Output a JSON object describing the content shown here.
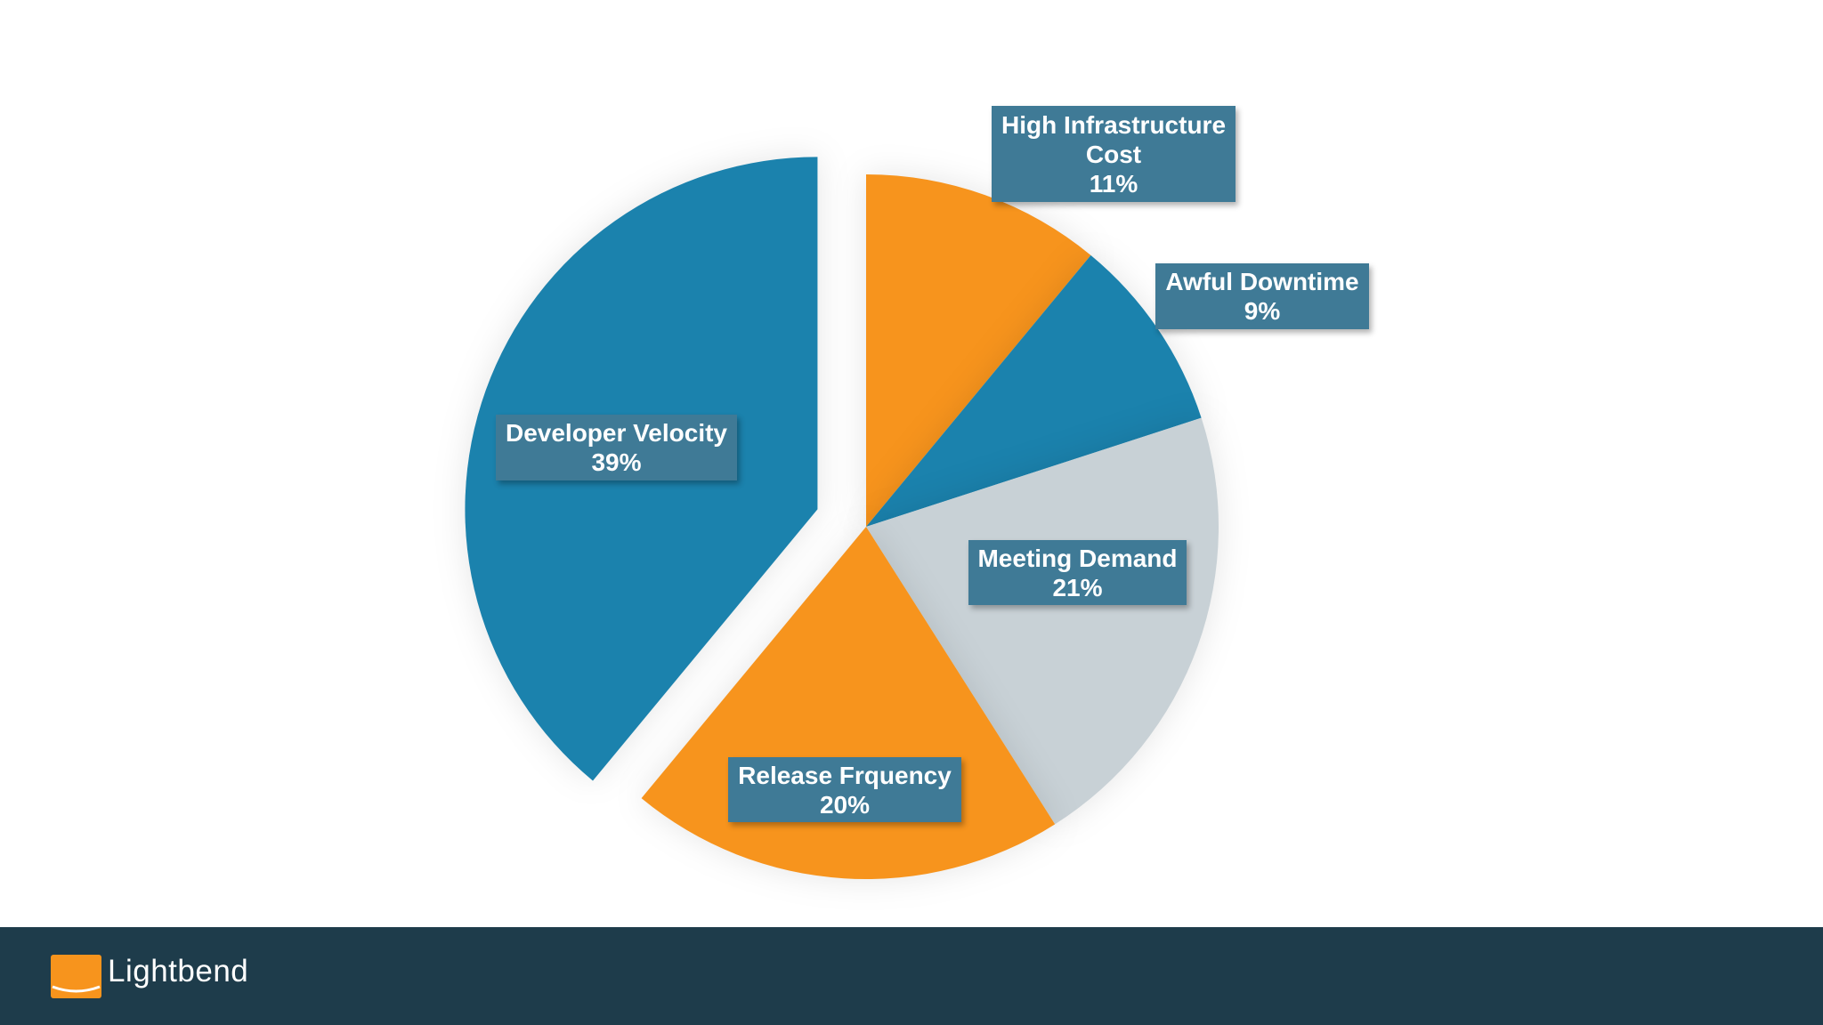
{
  "chart_data": {
    "type": "pie",
    "title": "",
    "exploded": [
      "Developer Velocity"
    ],
    "slices": [
      {
        "name": "High Infrastructure Cost",
        "value": 11,
        "label_lines": [
          "High Infrastructure",
          "Cost",
          "11%"
        ],
        "color": "#f7941d"
      },
      {
        "name": "Awful Downtime",
        "value": 9,
        "label_lines": [
          "Awful Downtime",
          "9%"
        ],
        "color": "#1b82ad"
      },
      {
        "name": "Meeting Demand",
        "value": 21,
        "label_lines": [
          "Meeting Demand",
          "21%"
        ],
        "color": "#c8d1d6"
      },
      {
        "name": "Release Frquency",
        "value": 20,
        "label_lines": [
          "Release Frquency",
          "20%"
        ],
        "color": "#f7941d"
      },
      {
        "name": "Developer Velocity",
        "value": 39,
        "label_lines": [
          "Developer Velocity",
          "39%"
        ],
        "color": "#1b82ad"
      }
    ],
    "label_background": "#3f7a96"
  },
  "footer": {
    "brand": "Lightbend",
    "background": "#1e3c4b",
    "logo_color": "#f7941d"
  }
}
